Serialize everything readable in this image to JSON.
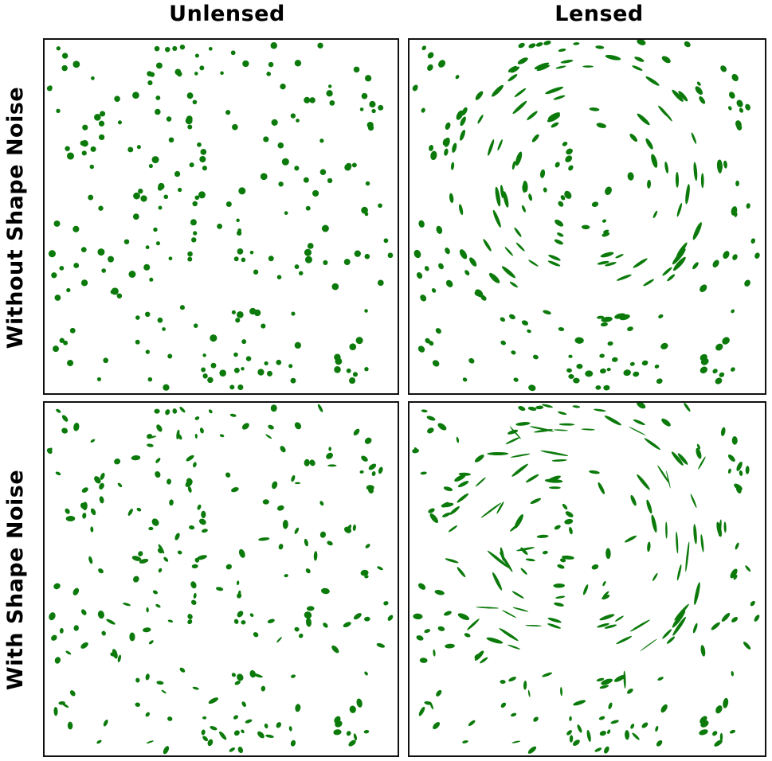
{
  "columns": {
    "left": "Unlensed",
    "right": "Lensed"
  },
  "rows": {
    "top": "Without Shape Noise",
    "bottom": "With Shape Noise"
  },
  "galaxy_color": "#0b7a0b"
}
